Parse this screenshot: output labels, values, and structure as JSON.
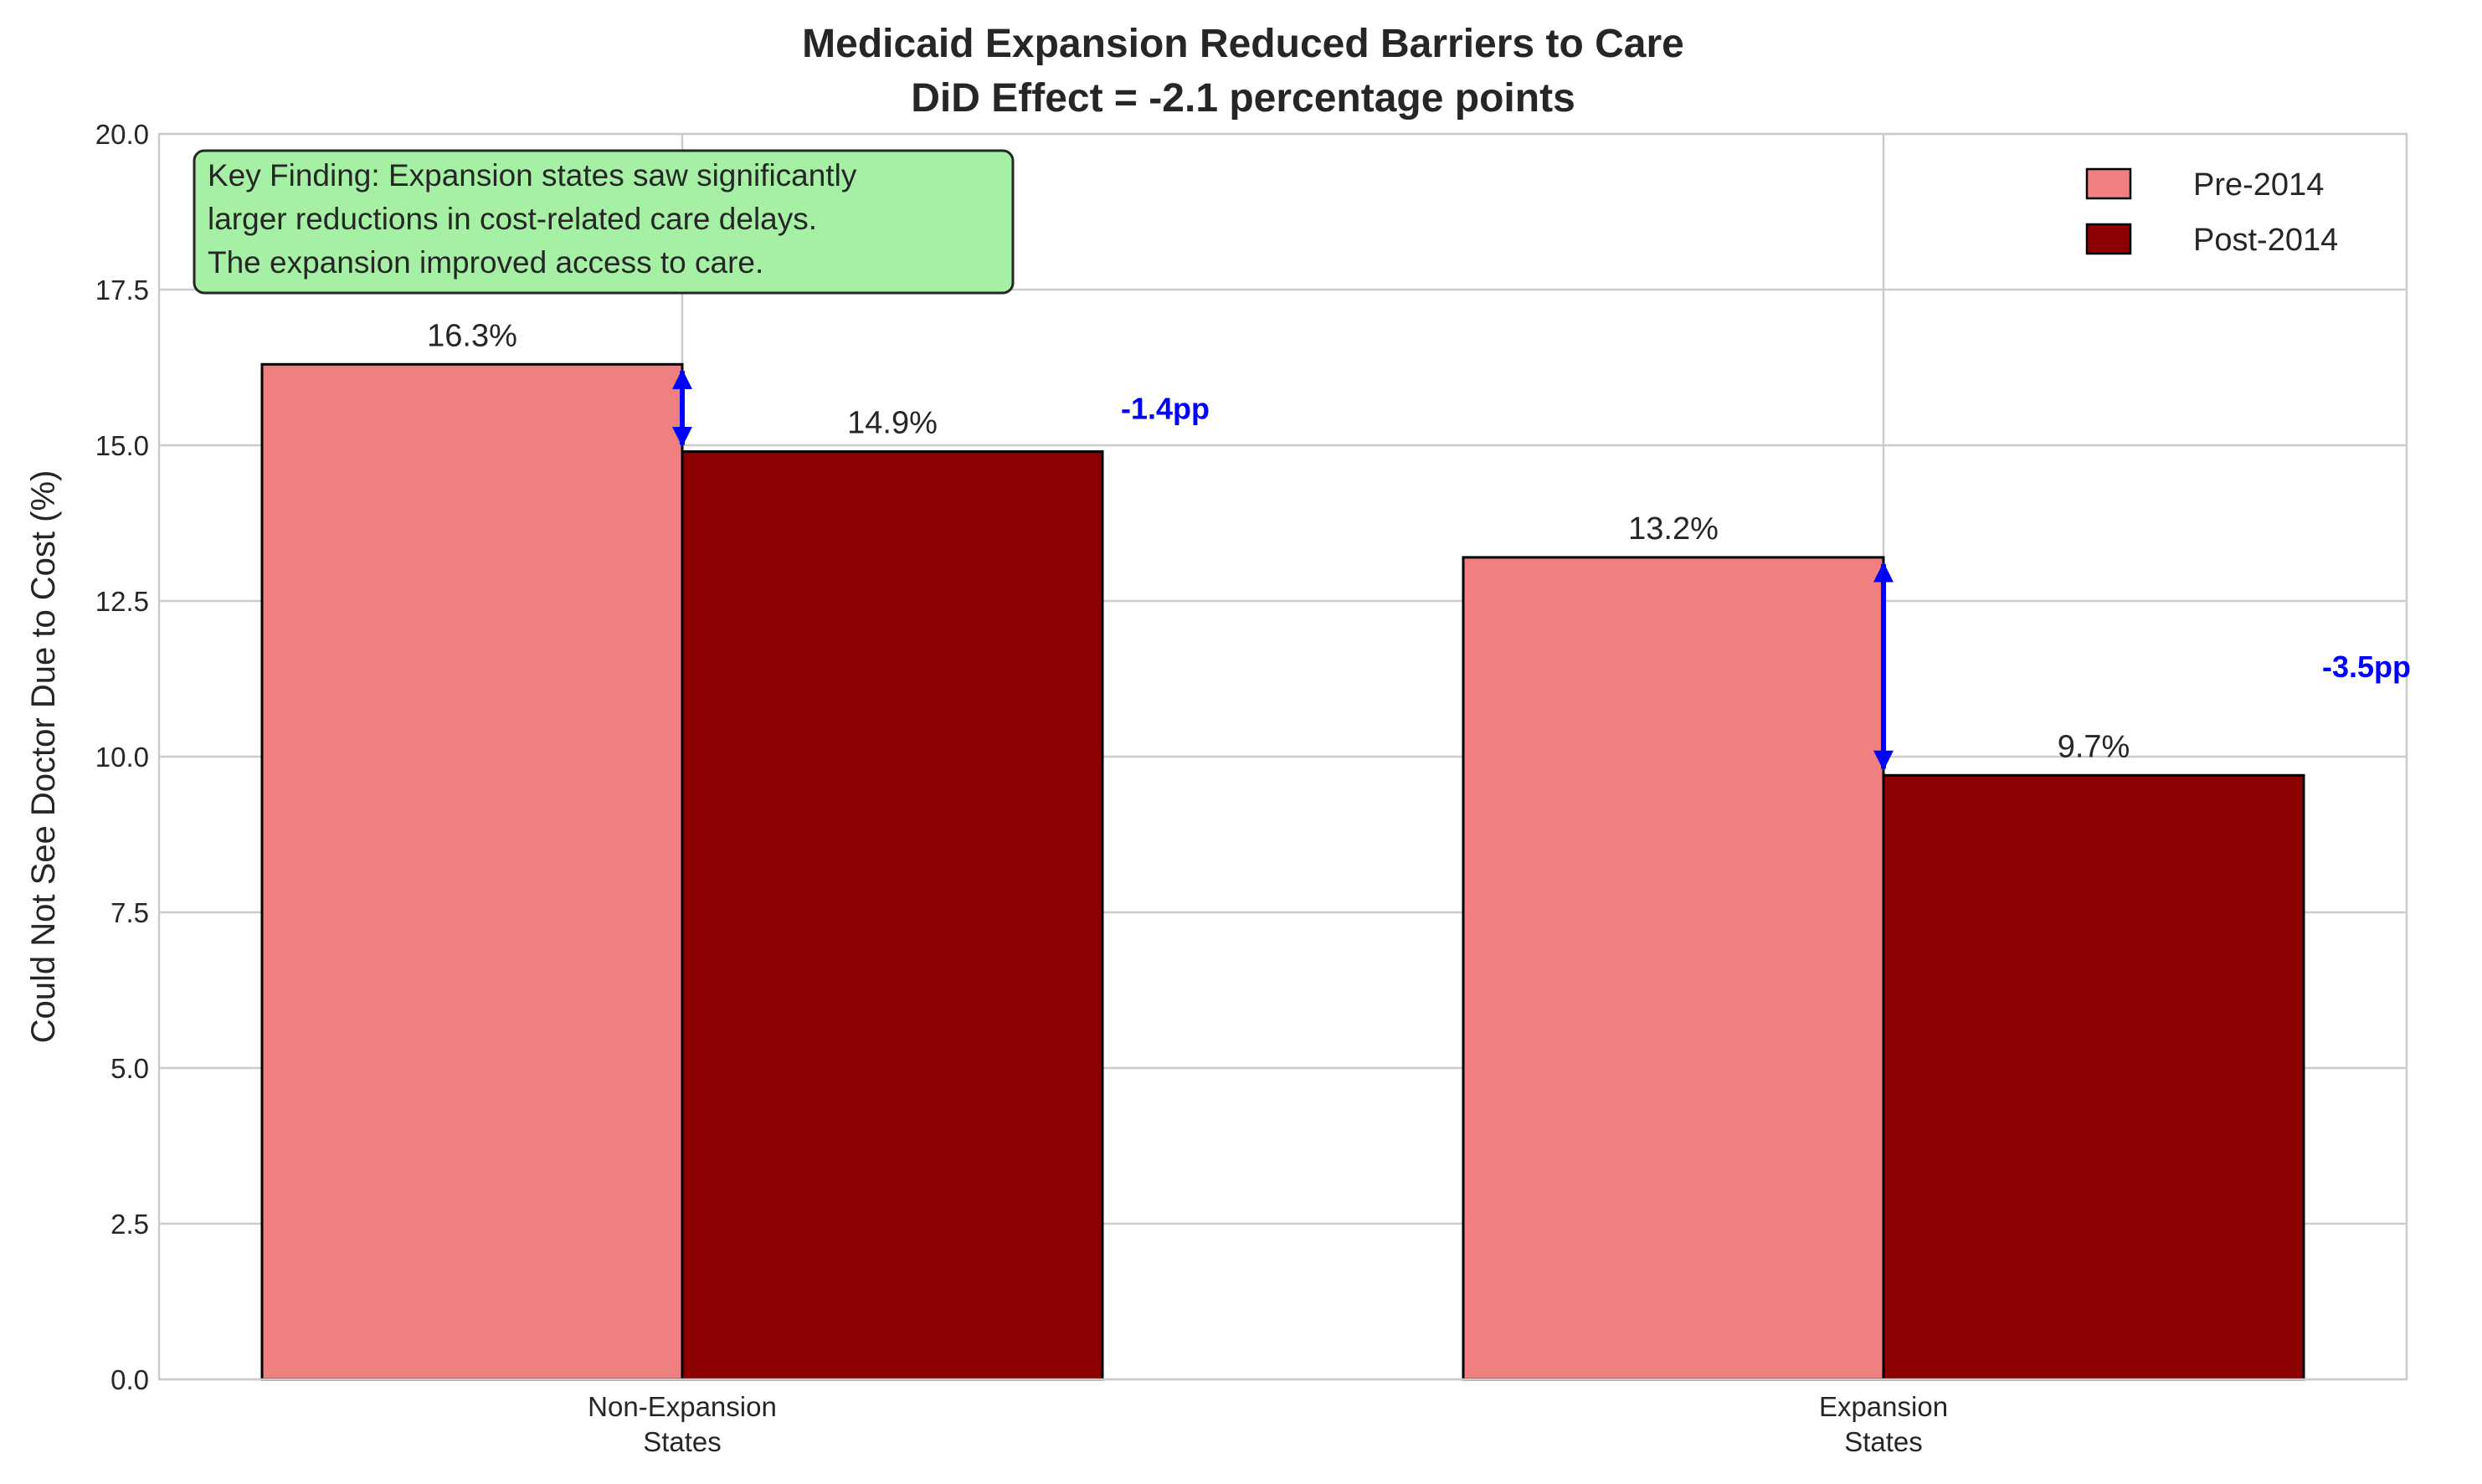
{
  "chart_data": {
    "type": "bar",
    "title": [
      "Medicaid Expansion Reduced Barriers to Care",
      "DiD Effect = -2.1 percentage points"
    ],
    "xlabel": "",
    "ylabel": "Could Not See Doctor Due to Cost (%)",
    "categories": [
      [
        "Non-Expansion",
        "States"
      ],
      [
        "Expansion",
        "States"
      ]
    ],
    "series": [
      {
        "name": "Pre-2014",
        "values": [
          16.3,
          13.2
        ],
        "color": "#f08080"
      },
      {
        "name": "Post-2014",
        "values": [
          14.9,
          9.7
        ],
        "color": "#8b0000"
      }
    ],
    "data_labels": [
      [
        "16.3%",
        "13.2%"
      ],
      [
        "14.9%",
        "9.7%"
      ]
    ],
    "ylim": [
      0,
      20
    ],
    "yticks": [
      "0.0",
      "2.5",
      "5.0",
      "7.5",
      "10.0",
      "12.5",
      "15.0",
      "17.5",
      "20.0"
    ],
    "grid": true,
    "legend_position": "top-right",
    "changes": [
      {
        "category": "Non-Expansion States",
        "from": 16.3,
        "to": 14.9,
        "label": "-1.4pp"
      },
      {
        "category": "Expansion States",
        "from": 13.2,
        "to": 9.7,
        "label": "-3.5pp"
      }
    ],
    "annotation": {
      "lines": [
        "Key Finding: Expansion states saw significantly",
        "larger reductions in cost-related care delays.",
        "The expansion improved access to care."
      ],
      "position": "top-left",
      "box_color": "#a6f0a6"
    },
    "arrow_color": "#0000ff",
    "label_color": "#0000ff"
  }
}
